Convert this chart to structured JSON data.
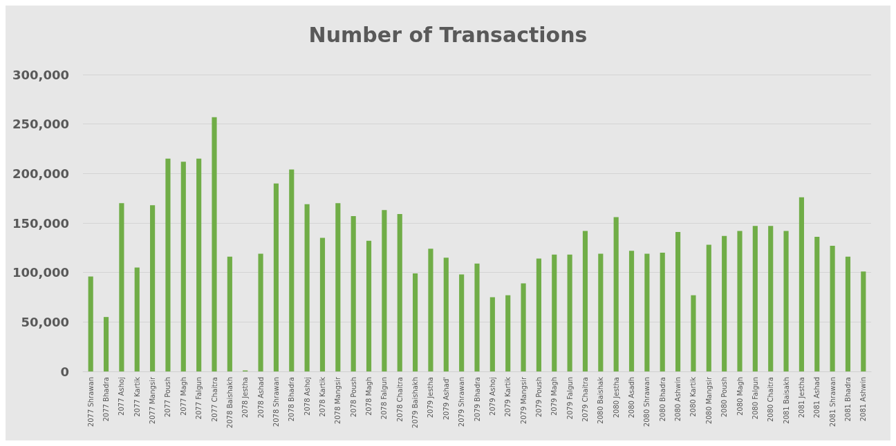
{
  "chart_data": {
    "type": "bar",
    "title": "Number of Transactions",
    "categories": [
      "2077 Shrawan",
      "2077 Bhadra",
      "2077 Ashoj",
      "2077 Kartik",
      "2077 Mangsir",
      "2077 Poush",
      "2077 Magh",
      "2077 Falgun",
      "2077 Chaitra",
      "2078 Baishakh",
      "2078 Jestha",
      "2078 Ashad",
      "2078 Shrawan",
      "2078 Bhadra",
      "2078 Ashoj",
      "2078 Kartik",
      "2078 Mangsir",
      "2078 Poush",
      "2078 Magh",
      "2078 Falgun",
      "2078 Chaitra",
      "2079 Baishakh",
      "2079 Jestha",
      "2079 Ashad'",
      "2079 Shrawan",
      "2079 Bhadra",
      "2079 Ashoj",
      "2079 Kartik",
      "2079 Mangsir",
      "2079 Poush",
      "2079 Magh",
      "2079 Falgun",
      "2079 Chaitra",
      "2080 Baishak",
      "2080 Jestha",
      "2080 Asadh",
      "2080 Shrawan",
      "2080 Bhadra",
      "2080 Ashwin",
      "2080 Kartik",
      "2080 Mangsir",
      "2080 Poush",
      "2080 Magh",
      "2080 Falgun",
      "2080 Chaitra",
      "2081 Baisakh",
      "2081 Jestha",
      "2081 Ashad",
      "2081 Shrawan",
      "2081 Bhadra",
      "2081 Ashwin"
    ],
    "values": [
      96000,
      55000,
      170000,
      105000,
      168000,
      215000,
      212000,
      215000,
      257000,
      116000,
      1000,
      119000,
      190000,
      204000,
      169000,
      135000,
      170000,
      157000,
      132000,
      163000,
      159000,
      99000,
      124000,
      115000,
      98000,
      109000,
      75000,
      77000,
      89000,
      114000,
      118000,
      118000,
      142000,
      119000,
      156000,
      122000,
      119000,
      120000,
      141000,
      77000,
      128000,
      137000,
      142000,
      147000,
      147000,
      142000,
      176000,
      136000,
      127000,
      116000,
      101000
    ],
    "color": "#70ad47",
    "ylim": [
      0,
      300000
    ],
    "yticks": [
      0,
      {
        "value": 50000,
        "label": "50,000"
      },
      {
        "value": 100000,
        "label": "100,000"
      },
      {
        "value": 150000,
        "label": "150,000"
      },
      {
        "value": 200000,
        "label": "200,000"
      },
      {
        "value": 250000,
        "label": "250,000"
      },
      {
        "value": 300000,
        "label": "300,000"
      }
    ],
    "grid": "y"
  }
}
